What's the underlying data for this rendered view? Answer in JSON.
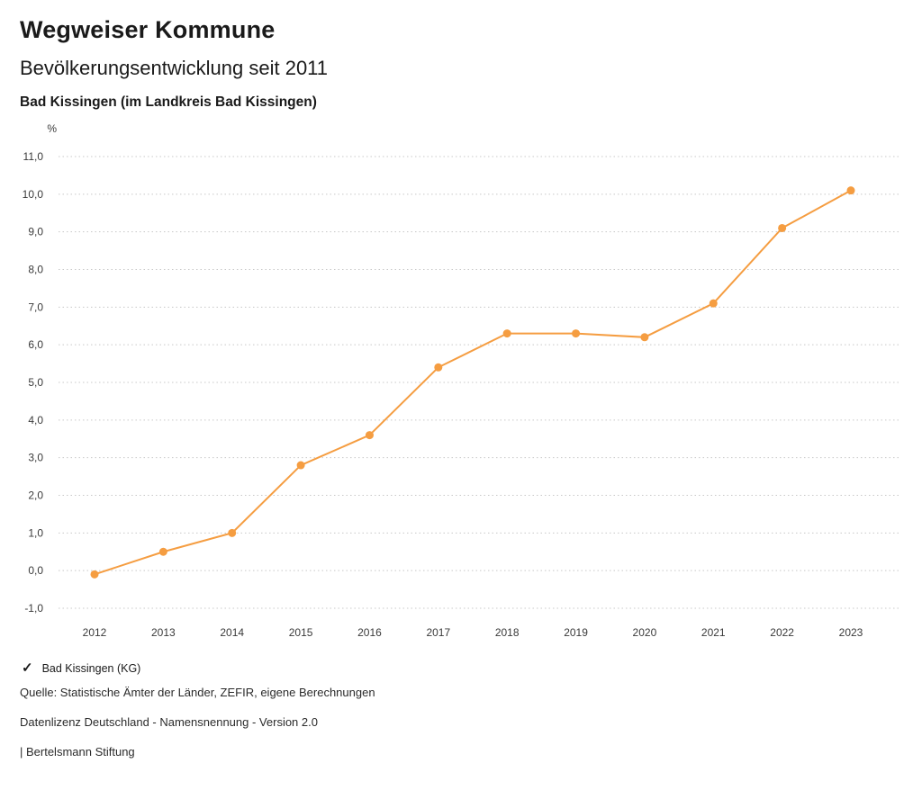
{
  "header": {
    "title": "Wegweiser Kommune",
    "subtitle": "Bevölkerungsentwicklung seit 2011",
    "location": "Bad Kissingen (im Landkreis Bad Kissingen)"
  },
  "chart_data": {
    "type": "line",
    "categories": [
      "2012",
      "2013",
      "2014",
      "2015",
      "2016",
      "2017",
      "2018",
      "2019",
      "2020",
      "2021",
      "2022",
      "2023"
    ],
    "series": [
      {
        "name": "Bad Kissingen (KG)",
        "values": [
          -0.1,
          0.5,
          1.0,
          2.8,
          3.6,
          5.4,
          6.3,
          6.3,
          6.2,
          7.1,
          9.1,
          10.1
        ]
      }
    ],
    "title": "Bevölkerungsentwicklung seit 2011",
    "xlabel": "",
    "ylabel": "%",
    "ylim": [
      -1.0,
      11.0
    ],
    "ytick_step": 1.0,
    "ytick_labels": [
      "11,0",
      "10,0",
      "9,0",
      "8,0",
      "7,0",
      "6,0",
      "5,0",
      "4,0",
      "3,0",
      "2,0",
      "1,0",
      "0,0",
      "-1,0"
    ],
    "grid": "horizontal-dotted",
    "line_color": "#f59d41",
    "legend_position": "bottom-left"
  },
  "legend": {
    "check_icon": "✓",
    "label": "Bad Kissingen (KG)"
  },
  "footer": {
    "source": "Quelle: Statistische Ämter der Länder, ZEFIR, eigene Berechnungen",
    "license": "Datenlizenz Deutschland - Namensnennung - Version 2.0",
    "attribution": "| Bertelsmann Stiftung"
  }
}
